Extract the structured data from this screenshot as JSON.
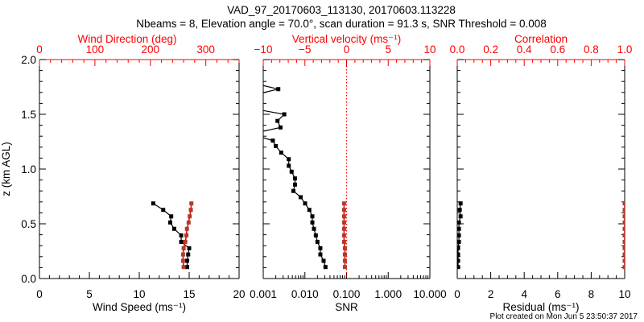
{
  "title": "VAD_97_20170603_113130, 20170603.113228",
  "subtitle": "Nbeams = 8, Elevation angle = 70.0°, scan duration = 91.3 s, SNR Threshold = 0.008",
  "footer": "Plot created on Mon Jun  5 23:50:37 2017",
  "colors": {
    "primary": "#000000",
    "secondary": "#ff0000",
    "marker_secondary": "#b03a2e"
  },
  "chart_data": [
    {
      "type": "line",
      "panel": "wind",
      "ylabel": "z (km AGL)",
      "ylim": [
        0,
        2.0
      ],
      "yticks": [
        "0.0",
        "0.5",
        "1.0",
        "1.5",
        "2.0"
      ],
      "xlabel": "Wind Speed (ms⁻¹)",
      "xlim": [
        0,
        20
      ],
      "xticks": [
        "0",
        "5",
        "10",
        "15",
        "20"
      ],
      "x2label": "Wind Direction (deg)",
      "x2lim": [
        0,
        360
      ],
      "x2ticks": [
        "0",
        "100",
        "200",
        "300"
      ],
      "z": [
        0.686,
        0.627,
        0.568,
        0.512,
        0.454,
        0.394,
        0.335,
        0.277,
        0.22,
        0.162,
        0.105
      ],
      "series": [
        {
          "name": "Wind Speed",
          "axis": "bottom",
          "color": "#000000",
          "values": [
            11.4,
            12.4,
            13.2,
            13.1,
            13.5,
            14.2,
            14.2,
            15.0,
            14.9,
            14.8,
            14.8
          ]
        },
        {
          "name": "Wind Direction",
          "axis": "top",
          "color": "#ff0000",
          "values": [
            274,
            273,
            271,
            269,
            266,
            265,
            263,
            260,
            259,
            259,
            260
          ]
        }
      ]
    },
    {
      "type": "line",
      "panel": "snr",
      "xlabel": "SNR",
      "xscale": "log",
      "xlim": [
        0.001,
        10
      ],
      "xticks": [
        "0.001",
        "0.010",
        "0.100",
        "1.000",
        "10.000"
      ],
      "x2label": "Vertical velocity (ms⁻¹)",
      "x2lim": [
        -10,
        10
      ],
      "x2ticks": [
        "−10",
        "−5",
        "0",
        "5",
        "10"
      ],
      "ylim": [
        0,
        2.0
      ],
      "series": [
        {
          "name": "SNR",
          "axis": "bottom",
          "color": "#000000",
          "z": [
            1.79,
            1.73,
            1.67,
            1.555,
            1.5,
            1.44,
            1.38,
            1.32,
            1.26,
            1.21,
            1.15,
            1.09,
            1.03,
            0.976,
            0.914,
            0.858,
            0.8,
            0.743,
            0.686,
            0.627,
            0.568,
            0.512,
            0.454,
            0.394,
            0.335,
            0.277,
            0.22,
            0.162,
            0.105
          ],
          "values": [
            0.0005,
            0.0023,
            0.0005,
            0.0005,
            0.0032,
            0.0022,
            0.0026,
            0.0005,
            0.0017,
            0.002,
            0.0027,
            0.0041,
            0.0041,
            0.0048,
            0.0058,
            0.0058,
            0.0053,
            0.0079,
            0.0101,
            0.0128,
            0.0151,
            0.0151,
            0.0165,
            0.0183,
            0.02,
            0.0235,
            0.0235,
            0.0281,
            0.0312
          ]
        },
        {
          "name": "Vertical velocity",
          "axis": "top",
          "color": "#ff0000",
          "z": [
            0.686,
            0.627,
            0.568,
            0.512,
            0.454,
            0.394,
            0.335,
            0.277,
            0.22,
            0.162,
            0.105
          ],
          "values": [
            -0.3,
            -0.3,
            -0.3,
            -0.3,
            -0.3,
            -0.3,
            -0.3,
            -0.2,
            -0.2,
            -0.2,
            -0.2
          ]
        }
      ],
      "reference_line": {
        "axis": "top",
        "value": 0,
        "style": "dotted",
        "color": "#ff0000"
      }
    },
    {
      "type": "line",
      "panel": "residual",
      "xlabel": "Residual (ms⁻¹)",
      "xlim": [
        0,
        10
      ],
      "xticks": [
        "0",
        "2",
        "4",
        "6",
        "8",
        "10"
      ],
      "x2label": "Correlation",
      "x2lim": [
        0,
        1.0
      ],
      "x2ticks": [
        "0.0",
        "0.2",
        "0.4",
        "0.6",
        "0.8",
        "1.0"
      ],
      "ylim": [
        0,
        2.0
      ],
      "z": [
        0.686,
        0.627,
        0.568,
        0.512,
        0.454,
        0.394,
        0.335,
        0.277,
        0.22,
        0.162,
        0.105
      ],
      "series": [
        {
          "name": "Residual",
          "axis": "bottom",
          "color": "#000000",
          "values": [
            0.2,
            0.15,
            0.2,
            0.1,
            0.1,
            0.1,
            0.1,
            0.05,
            0.05,
            0.05,
            0.05
          ]
        },
        {
          "name": "Correlation",
          "axis": "top",
          "color": "#ff0000",
          "values": [
            1.0,
            1.0,
            1.0,
            1.0,
            1.0,
            1.0,
            1.0,
            1.0,
            1.0,
            1.0,
            1.0
          ]
        }
      ]
    }
  ]
}
